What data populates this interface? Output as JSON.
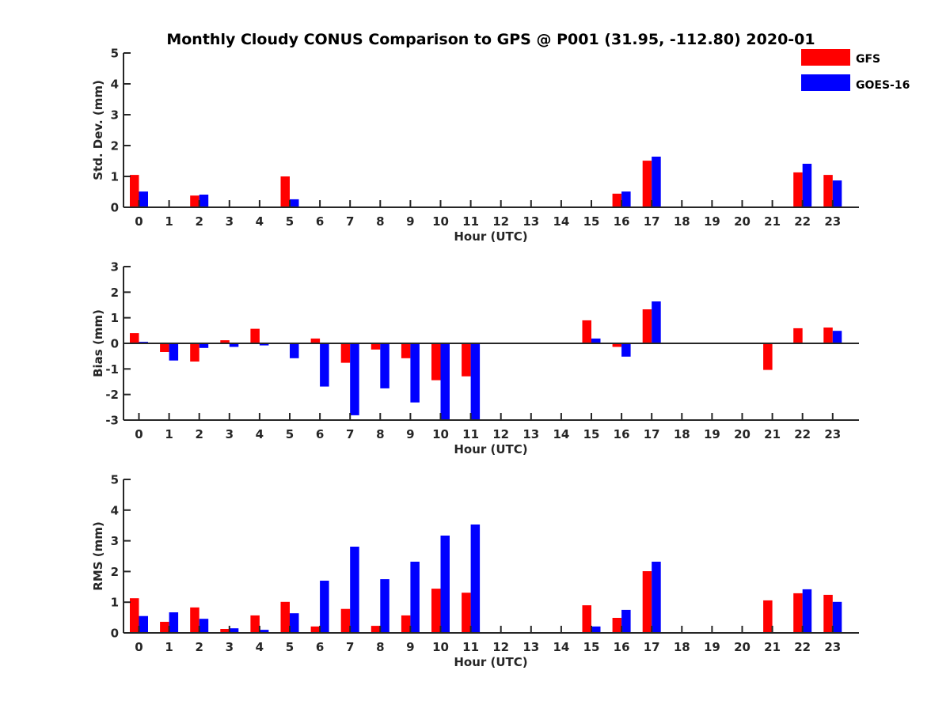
{
  "chart_data": {
    "title": "Monthly Cloudy CONUS Comparison to GPS @ P001 (31.95, -112.80) 2020-01",
    "legend": {
      "placement": "top-right",
      "entries": [
        {
          "name": "GFS",
          "color": "#ff0000"
        },
        {
          "name": "GOES-16",
          "color": "#0000ff"
        }
      ]
    },
    "panels": [
      {
        "type": "bar",
        "ylabel": "Std. Dev. (mm)",
        "xlabel": "Hour (UTC)",
        "ylim": [
          0,
          5
        ],
        "yticks": [
          "0",
          "1",
          "2",
          "3",
          "4",
          "5"
        ],
        "categories": [
          "0",
          "1",
          "2",
          "3",
          "4",
          "5",
          "6",
          "7",
          "8",
          "9",
          "10",
          "11",
          "12",
          "13",
          "14",
          "15",
          "16",
          "17",
          "18",
          "19",
          "20",
          "21",
          "22",
          "23"
        ],
        "series": [
          {
            "name": "GFS",
            "values": [
              1.05,
              0,
              0.38,
              0,
              0,
              1.0,
              0,
              0,
              0,
              0,
              0,
              0,
              0,
              0,
              0,
              0,
              0.44,
              1.51,
              0,
              0,
              0,
              0,
              1.13,
              1.05
            ]
          },
          {
            "name": "GOES-16",
            "values": [
              0.51,
              0,
              0.41,
              0,
              0,
              0.26,
              0,
              0,
              0,
              0,
              0,
              0,
              0,
              0,
              0,
              0,
              0.51,
              1.64,
              0,
              0,
              0,
              0,
              1.41,
              0.87
            ]
          }
        ]
      },
      {
        "type": "bar",
        "ylabel": "Bias (mm)",
        "xlabel": "Hour (UTC)",
        "ylim": [
          -3,
          3
        ],
        "yticks": [
          "-3",
          "-2",
          "-1",
          "0",
          "1",
          "2",
          "3"
        ],
        "categories": [
          "0",
          "1",
          "2",
          "3",
          "4",
          "5",
          "6",
          "7",
          "8",
          "9",
          "10",
          "11",
          "12",
          "13",
          "14",
          "15",
          "16",
          "17",
          "18",
          "19",
          "20",
          "21",
          "22",
          "23"
        ],
        "series": [
          {
            "name": "GFS",
            "values": [
              0.4,
              -0.34,
              -0.71,
              0.12,
              0.57,
              0.03,
              0.19,
              -0.76,
              -0.24,
              -0.58,
              -1.44,
              -1.29,
              0,
              0,
              0,
              0.9,
              -0.14,
              1.33,
              0,
              0,
              0,
              -1.04,
              0.59,
              0.62
            ]
          },
          {
            "name": "GOES-16",
            "values": [
              0.06,
              -0.67,
              -0.18,
              -0.14,
              -0.08,
              -0.58,
              -1.69,
              -2.81,
              -1.76,
              -2.31,
              -3.17,
              -3.53,
              0,
              0,
              0,
              0.19,
              -0.52,
              1.64,
              0,
              0,
              0,
              0,
              0,
              0.49
            ]
          }
        ]
      },
      {
        "type": "bar",
        "ylabel": "RMS (mm)",
        "xlabel": "Hour (UTC)",
        "ylim": [
          0,
          5
        ],
        "yticks": [
          "0",
          "1",
          "2",
          "3",
          "4",
          "5"
        ],
        "categories": [
          "0",
          "1",
          "2",
          "3",
          "4",
          "5",
          "6",
          "7",
          "8",
          "9",
          "10",
          "11",
          "12",
          "13",
          "14",
          "15",
          "16",
          "17",
          "18",
          "19",
          "20",
          "21",
          "22",
          "23"
        ],
        "series": [
          {
            "name": "GFS",
            "values": [
              1.13,
              0.36,
              0.83,
              0.13,
              0.57,
              1.01,
              0.21,
              0.78,
              0.23,
              0.57,
              1.44,
              1.31,
              0,
              0,
              0,
              0.9,
              0.49,
              2.01,
              0,
              0,
              0,
              1.06,
              1.29,
              1.24
            ]
          },
          {
            "name": "GOES-16",
            "values": [
              0.55,
              0.67,
              0.46,
              0.15,
              0.1,
              0.64,
              1.7,
              2.81,
              1.75,
              2.32,
              3.17,
              3.53,
              0,
              0,
              0,
              0.21,
              0.75,
              2.32,
              0,
              0,
              0,
              0,
              1.42,
              1.01
            ]
          }
        ]
      }
    ]
  }
}
